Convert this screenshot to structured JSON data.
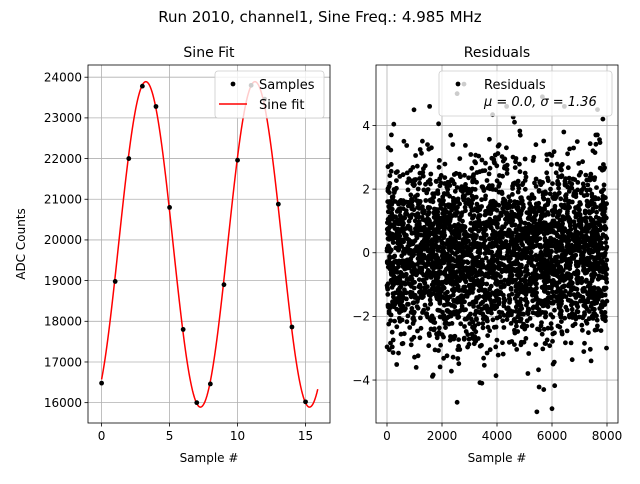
{
  "figure": {
    "suptitle": "Run 2010, channel1, Sine Freq.: 4.985 MHz"
  },
  "chart_data": [
    {
      "type": "scatter+line",
      "title": "Sine Fit",
      "xlabel": "Sample #",
      "ylabel": "ADC Counts",
      "xlim": [
        -1,
        16.8
      ],
      "ylim": [
        15500,
        24300
      ],
      "xticks": [
        0,
        5,
        10,
        15
      ],
      "yticks": [
        16000,
        17000,
        18000,
        19000,
        20000,
        21000,
        22000,
        23000,
        24000
      ],
      "grid": true,
      "legend_position": "upper right",
      "series": [
        {
          "name": "Samples",
          "kind": "scatter",
          "color": "#000000",
          "x": [
            0,
            1,
            2,
            3,
            4,
            5,
            6,
            7,
            8,
            9,
            10,
            11,
            12,
            13,
            14,
            15
          ],
          "y": [
            16480,
            18980,
            22000,
            23780,
            23280,
            20800,
            17800,
            16000,
            16460,
            18900,
            21960,
            23800,
            23460,
            20880,
            17860,
            16020
          ]
        },
        {
          "name": "Sine fit",
          "kind": "line",
          "color": "#ff0000",
          "model": {
            "amplitude": 4000,
            "offset": 19890,
            "period": 8.025,
            "phase_x": 1.25,
            "x_range": [
              0,
              15.9
            ]
          }
        }
      ]
    },
    {
      "type": "scatter",
      "title": "Residuals",
      "xlabel": "Sample #",
      "ylabel": "",
      "xlim": [
        -400,
        8400
      ],
      "ylim": [
        -5.35,
        5.9
      ],
      "xticks": [
        0,
        2000,
        4000,
        6000,
        8000
      ],
      "yticks": [
        -4,
        -2,
        0,
        2,
        4
      ],
      "grid": true,
      "legend_position": "upper right",
      "legend_entry": "Residuals",
      "legend_stats": "μ = 0.0, σ = 1.36",
      "series": [
        {
          "name": "Residuals",
          "color": "#000000",
          "n_points": 8000,
          "x_range": [
            0,
            8000
          ],
          "mean": 0.0,
          "std": 1.36,
          "outliers": [
            {
              "x": 2550,
              "y": 5.0
            },
            {
              "x": 2800,
              "y": 5.3
            },
            {
              "x": 2550,
              "y": -4.7
            },
            {
              "x": 5450,
              "y": -5.0
            },
            {
              "x": 6000,
              "y": -4.9
            },
            {
              "x": 5700,
              "y": -4.3
            },
            {
              "x": 3450,
              "y": -4.1
            },
            {
              "x": 6450,
              "y": 4.6
            },
            {
              "x": 5650,
              "y": 4.9
            },
            {
              "x": 4350,
              "y": 4.6
            },
            {
              "x": 1550,
              "y": 4.6
            },
            {
              "x": 7850,
              "y": 4.2
            }
          ]
        }
      ]
    }
  ]
}
